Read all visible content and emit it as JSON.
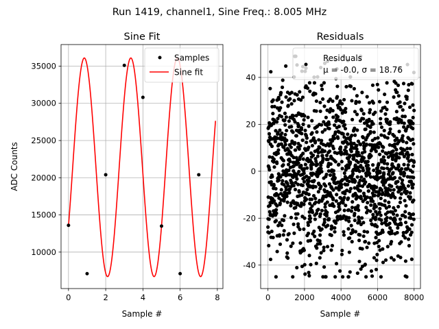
{
  "suptitle": "Run 1419, channel1, Sine Freq.: 8.005 MHz",
  "chart_data": [
    {
      "type": "scatter+line",
      "title": "Sine Fit",
      "xlabel": "Sample #",
      "ylabel": "ADC Counts",
      "xlim": [
        -0.4,
        8.3
      ],
      "ylim": [
        5100,
        37900
      ],
      "xticks": [
        0,
        2,
        4,
        6,
        8
      ],
      "yticks": [
        10000,
        15000,
        20000,
        25000,
        30000,
        35000
      ],
      "grid": true,
      "legend_position": "top-right",
      "samples": {
        "name": "Samples",
        "color": "#000000",
        "x": [
          0,
          1,
          2,
          3,
          4,
          5,
          6,
          7
        ],
        "y": [
          13600,
          7100,
          20400,
          35100,
          30800,
          13500,
          7100,
          20400
        ]
      },
      "fit": {
        "name": "Sine fit",
        "color": "#ff0000",
        "model": "offset + amplitude * sin(2*pi*cycles_per_sample*x + phase_rad)",
        "offset": 21400,
        "amplitude": 14700,
        "cycles_per_sample": 0.4,
        "phase_rad": -0.567,
        "x_range": [
          0,
          7.9
        ]
      }
    },
    {
      "type": "scatter",
      "title": "Residuals",
      "xlabel": "Sample #",
      "xlim": [
        -400,
        8350
      ],
      "ylim": [
        -50,
        54
      ],
      "xticks": [
        0,
        2000,
        4000,
        6000,
        8000
      ],
      "yticks": [
        -40,
        -20,
        0,
        20,
        40
      ],
      "grid": true,
      "legend_position": "top-right",
      "series": {
        "name": "Residuals",
        "name_stats": "μ = -0.0, σ = 18.76",
        "color": "#000000",
        "n_points": 8000,
        "x_range": [
          0,
          7999
        ],
        "mean": 0.0,
        "std": 18.76,
        "min": -45,
        "max": 49
      }
    }
  ]
}
